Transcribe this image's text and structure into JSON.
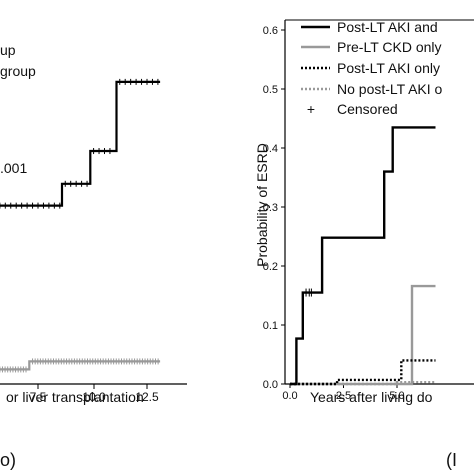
{
  "left_panel": {
    "legend_lines": [
      "up",
      "group"
    ],
    "p_value_text": ".001",
    "xlabel": "or liver transplantation",
    "x_ticks": [
      "7.5",
      "10.0",
      "12.5"
    ],
    "panel_letter": "o)"
  },
  "chart_data": [
    {
      "type": "line",
      "panel": "left",
      "xlim": [
        5.6,
        13.5
      ],
      "ylim": [
        0,
        1
      ],
      "series": [
        {
          "color": "#000000",
          "points": [
            [
              5.6,
              0.49
            ],
            [
              8.6,
              0.49
            ],
            [
              8.6,
              0.55
            ],
            [
              9.9,
              0.55
            ],
            [
              9.9,
              0.64
            ],
            [
              11.1,
              0.64
            ],
            [
              11.1,
              0.83
            ],
            [
              13.1,
              0.83
            ]
          ]
        },
        {
          "color": "#999999",
          "points": [
            [
              5.6,
              0.04
            ],
            [
              7.1,
              0.04
            ],
            [
              7.1,
              0.062
            ],
            [
              13.1,
              0.062
            ]
          ]
        }
      ]
    },
    {
      "type": "line",
      "panel": "right",
      "ylabel": "Probability of ESRD",
      "xlabel": "Years after living do",
      "xlim": [
        0,
        6.8
      ],
      "ylim": [
        0,
        0.62
      ],
      "x_ticks": [
        0.0,
        2.5,
        5.0
      ],
      "y_ticks": [
        0.0,
        0.1,
        0.2,
        0.3,
        0.4,
        0.5,
        0.6
      ],
      "legend_position": "top-right",
      "legend": [
        {
          "label": "Post-LT AKI and",
          "style": "solid-black"
        },
        {
          "label": "Pre-LT CKD only",
          "style": "solid-gray"
        },
        {
          "label": "Post-LT AKI only",
          "style": "dotted-black"
        },
        {
          "label": "No post-LT AKI o",
          "style": "dotted-gray"
        },
        {
          "label": "Censored",
          "style": "plus"
        }
      ],
      "series": [
        {
          "name": "Post-LT AKI and",
          "color": "#000000",
          "dash": "none",
          "points": [
            [
              0,
              0
            ],
            [
              0.3,
              0
            ],
            [
              0.3,
              0.077
            ],
            [
              0.6,
              0.077
            ],
            [
              0.6,
              0.155
            ],
            [
              1.5,
              0.155
            ],
            [
              1.5,
              0.248
            ],
            [
              4.4,
              0.248
            ],
            [
              4.4,
              0.36
            ],
            [
              4.8,
              0.36
            ],
            [
              4.8,
              0.435
            ],
            [
              6.8,
              0.435
            ]
          ]
        },
        {
          "name": "Pre-LT CKD only",
          "color": "#999999",
          "dash": "none",
          "points": [
            [
              0,
              0
            ],
            [
              5.7,
              0
            ],
            [
              5.7,
              0.166
            ],
            [
              6.8,
              0.166
            ]
          ]
        },
        {
          "name": "Post-LT AKI only",
          "color": "#000000",
          "dash": "2,2",
          "points": [
            [
              0,
              0
            ],
            [
              2.2,
              0
            ],
            [
              2.2,
              0.007
            ],
            [
              5.2,
              0.007
            ],
            [
              5.2,
              0.04
            ],
            [
              6.8,
              0.04
            ]
          ]
        },
        {
          "name": "No post-LT AKI o",
          "color": "#999999",
          "dash": "2,2",
          "points": [
            [
              0,
              0
            ],
            [
              5.0,
              0
            ],
            [
              5.0,
              0.003
            ],
            [
              6.8,
              0.003
            ]
          ]
        }
      ]
    }
  ],
  "right_panel": {
    "ylabel": "Probability of ESRD",
    "xlabel": "Years after living do",
    "panel_letter": "(I",
    "x_tick_labels": [
      "0.0",
      "2.5",
      "5.0"
    ],
    "y_tick_labels": [
      "0.0",
      "0.1",
      "0.2",
      "0.3",
      "0.4",
      "0.5",
      "0.6"
    ],
    "legend": [
      "Post-LT AKI and",
      "Pre-LT CKD only",
      "Post-LT AKI only",
      "No post-LT AKI o",
      "Censored"
    ],
    "censored_symbol": "+"
  }
}
